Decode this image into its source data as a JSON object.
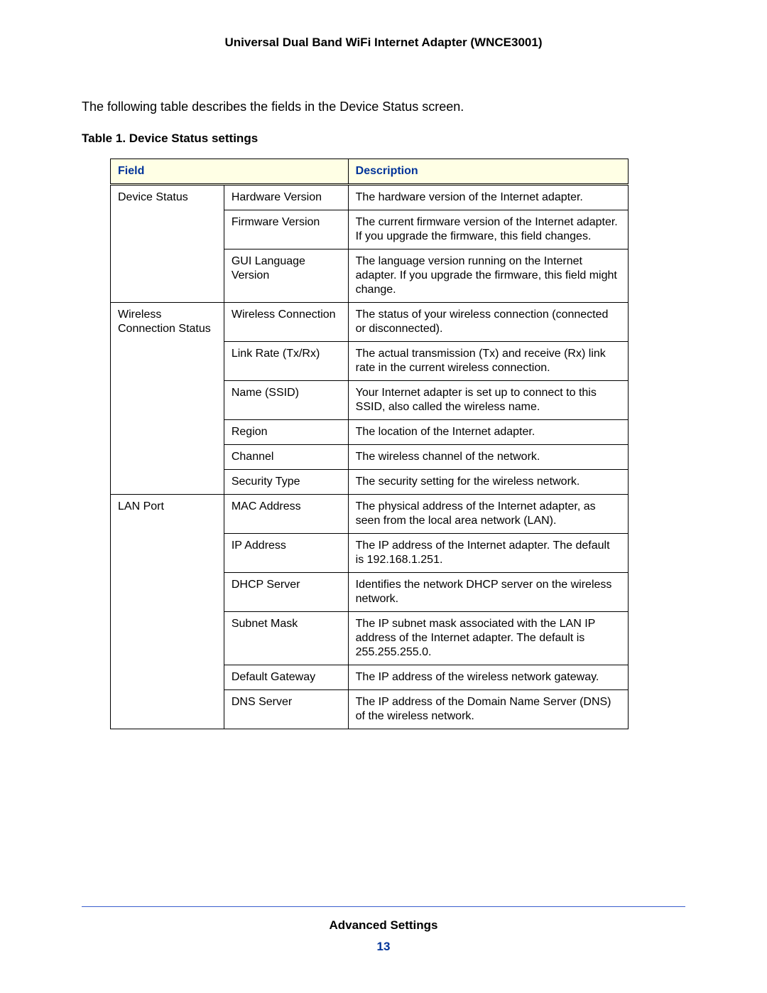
{
  "doc": {
    "header": "Universal Dual Band WiFi Internet Adapter (WNCE3001)",
    "intro": "The following table describes the fields in the Device Status screen.",
    "table_caption": "Table 1.  Device Status settings",
    "footer_title": "Advanced Settings",
    "page_number": "13"
  },
  "table": {
    "header_field": "Field",
    "header_desc": "Description",
    "header_bg": "#ffffe5",
    "header_color": "#003399",
    "border_color": "#000000",
    "groups": [
      {
        "name": "Device Status",
        "rows": [
          {
            "field": "Hardware Version",
            "desc": "The hardware version of the Internet adapter."
          },
          {
            "field": "Firmware Version",
            "desc": "The current firmware version of the Internet adapter. If you upgrade the firmware, this field changes."
          },
          {
            "field": "GUI Language Version",
            "desc": "The language version running on the Internet adapter. If you upgrade the firmware, this field might change."
          }
        ]
      },
      {
        "name": "Wireless Connection Status",
        "rows": [
          {
            "field": "Wireless Connection",
            "desc": "The status of your wireless connection (connected or disconnected)."
          },
          {
            "field": "Link Rate (Tx/Rx)",
            "desc": "The actual transmission (Tx) and receive (Rx) link rate in the current wireless connection."
          },
          {
            "field": "Name (SSID)",
            "desc": "Your Internet adapter is set up to connect to this SSID, also called the wireless name."
          },
          {
            "field": "Region",
            "desc": "The location of the Internet adapter."
          },
          {
            "field": "Channel",
            "desc": "The wireless channel of the network."
          },
          {
            "field": "Security Type",
            "desc": "The security setting for the wireless network."
          }
        ]
      },
      {
        "name": "LAN Port",
        "rows": [
          {
            "field": "MAC Address",
            "desc": "The physical address of the Internet adapter, as seen from the local area network (LAN)."
          },
          {
            "field": "IP Address",
            "desc": "The IP address of the Internet adapter. The default is 192.168.1.251."
          },
          {
            "field": "DHCP Server",
            "desc": "Identifies the network DHCP server on the wireless network."
          },
          {
            "field": "Subnet Mask",
            "desc": "The IP subnet mask associated with the LAN IP address of the Internet adapter. The default is 255.255.255.0."
          },
          {
            "field": "Default Gateway",
            "desc": "The IP address of the wireless network gateway."
          },
          {
            "field": "DNS Server",
            "desc": "The IP address of the Domain Name Server (DNS) of the wireless network."
          }
        ]
      }
    ]
  }
}
